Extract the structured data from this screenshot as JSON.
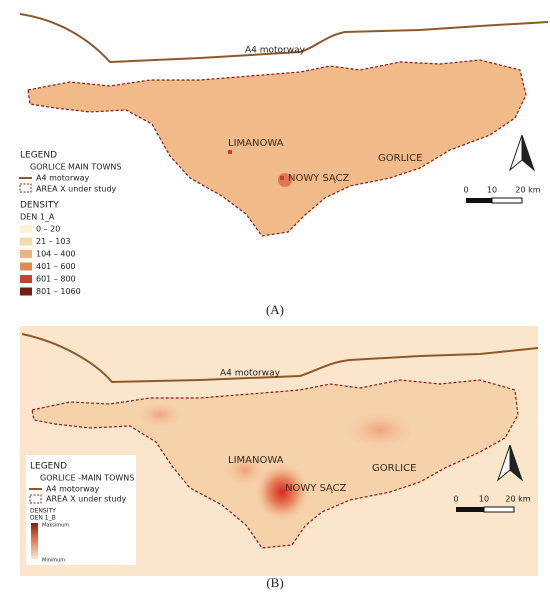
{
  "panel_a": {
    "motorway_label": "A4 motorway",
    "towns": [
      "LIMANOWA",
      "NOWY SĄCZ",
      "GORLICE"
    ],
    "legend": {
      "title": "LEGEND",
      "towns": "GORLICE MAIN TOWNS",
      "motorway": "A4 motorway",
      "area": "AREA X under study",
      "density_title": "DENSITY",
      "layer": "DEN 1_A",
      "classes": [
        {
          "label": "0 – 20",
          "color": "#fbf1d6"
        },
        {
          "label": "21 – 103",
          "color": "#f3d9a8"
        },
        {
          "label": "104 – 400",
          "color": "#eeb47f"
        },
        {
          "label": "401 – 600",
          "color": "#e08a58"
        },
        {
          "label": "601 – 800",
          "color": "#c2412f"
        },
        {
          "label": "801 – 1060",
          "color": "#7a1a14"
        }
      ]
    },
    "scale": [
      "0",
      "10",
      "20 km"
    ],
    "caption": "(A)"
  },
  "panel_b": {
    "motorway_label": "A4 motorway",
    "towns": [
      "LIMANOWA",
      "NOWY SĄCZ",
      "GORLICE"
    ],
    "legend": {
      "title": "LEGEND",
      "towns": "GORLICE -MAIN TOWNS",
      "motorway": "A4 motorway",
      "area": "AREA X under study",
      "density_title": "DENSITY",
      "layer": "DEN 1_B",
      "max": "Maksimum",
      "min": "Minimum"
    },
    "scale": [
      "0",
      "10",
      "20 km"
    ],
    "caption": "(B)"
  }
}
